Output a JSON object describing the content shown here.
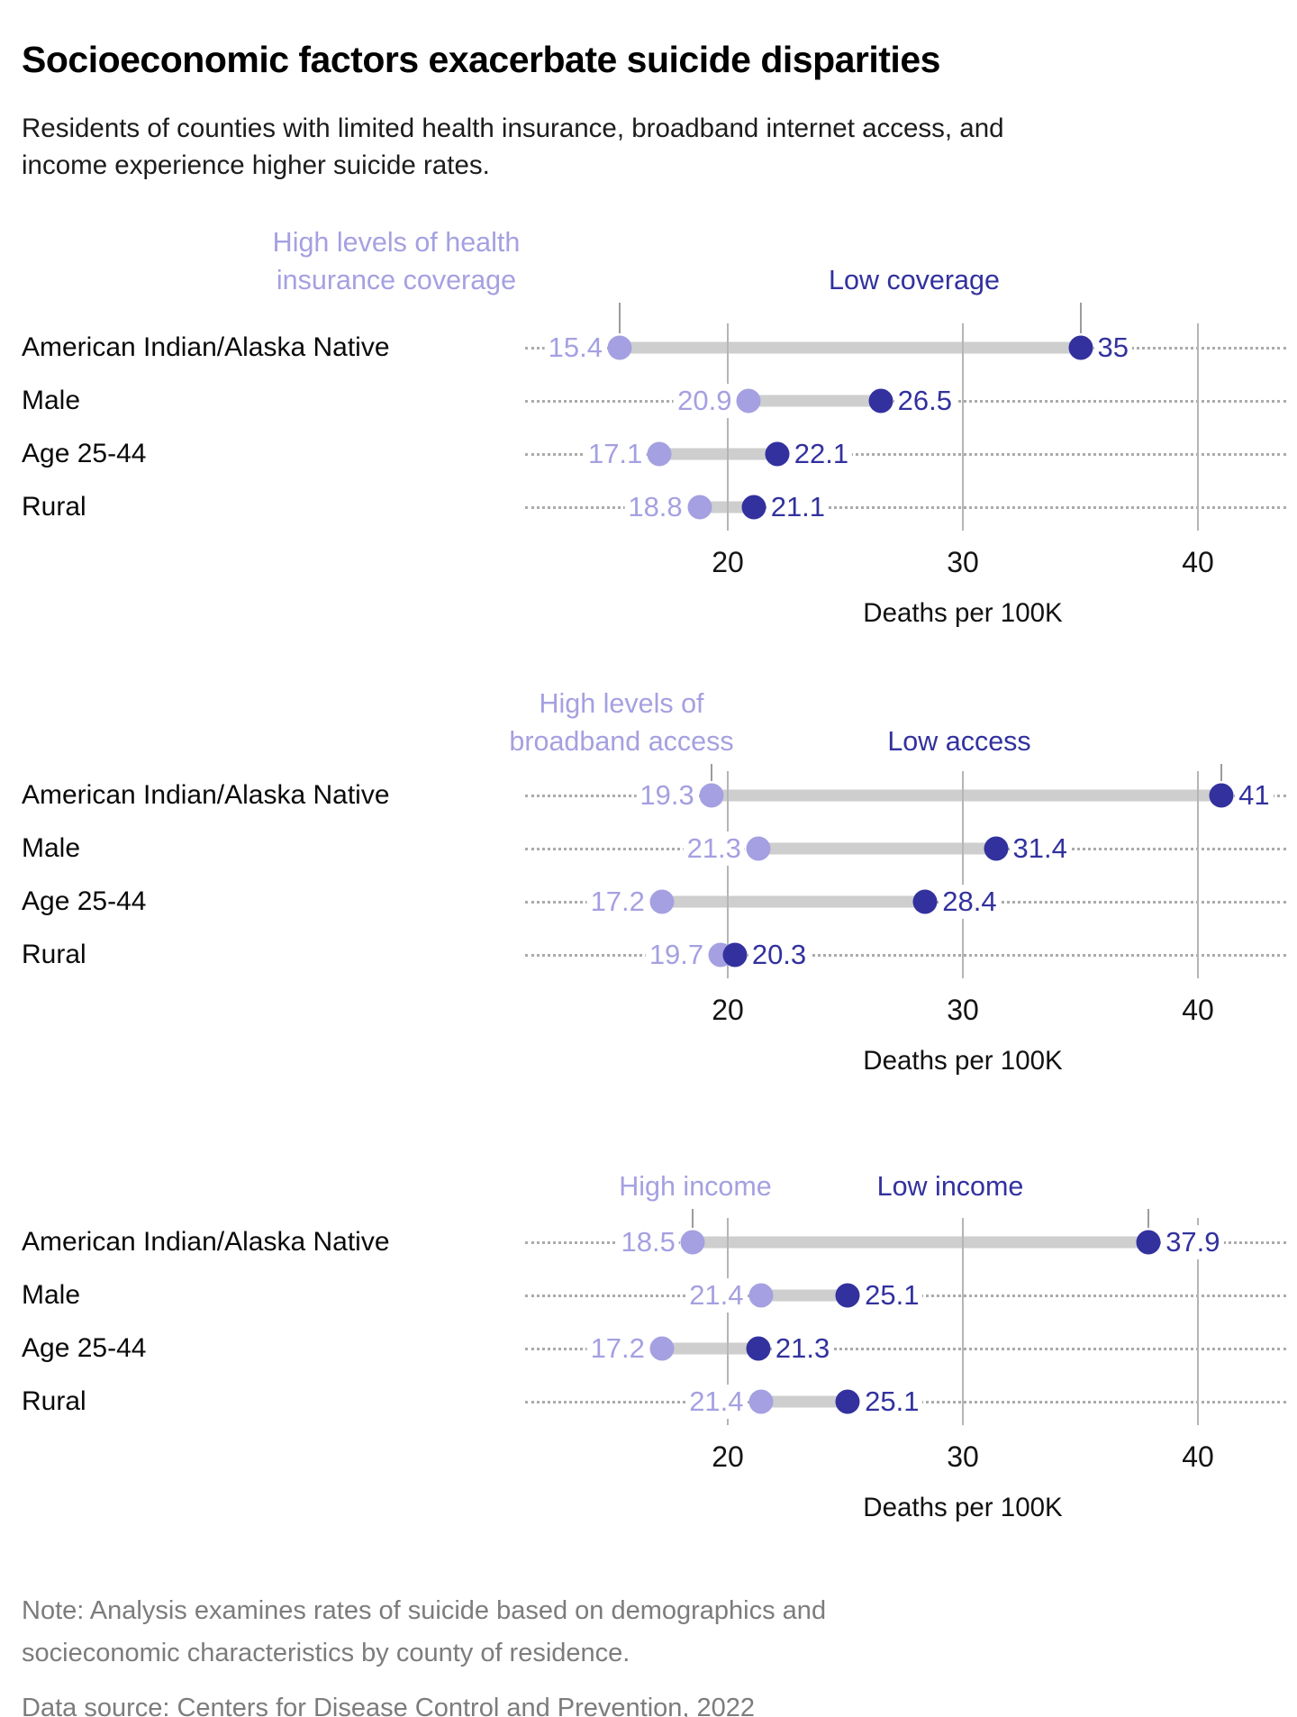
{
  "title": "Socioeconomic factors exacerbate suicide disparities",
  "subtitle": "Residents of counties with limited health insurance, broadband internet access, and income experience higher suicide rates.",
  "note": "Note: Analysis examines rates of suicide based on demographics and socieconomic characteristics by county of residence.",
  "source": "Data source: Centers for Disease Control and Prevention, 2022",
  "colors": {
    "high": "#a5a0e1",
    "low": "#32319e",
    "bar": "#cecece",
    "grid": "#b5b5b5"
  },
  "chart_data": [
    {
      "type": "dumbbell",
      "high_label_lines": [
        "High levels of health",
        "insurance coverage"
      ],
      "low_label": "Low coverage",
      "categories": [
        "American Indian/Alaska Native",
        "Male",
        "Age 25-44",
        "Rural"
      ],
      "series": [
        {
          "name": "high",
          "values": [
            15.4,
            20.9,
            17.1,
            18.8
          ],
          "labels": [
            "15.4",
            "20.9",
            "17.1",
            "18.8"
          ]
        },
        {
          "name": "low",
          "values": [
            35,
            26.5,
            22.1,
            21.1
          ],
          "labels": [
            "35",
            "26.5",
            "22.1",
            "21.1"
          ]
        }
      ],
      "ticks": [
        20,
        30,
        40
      ],
      "xlabel": "Deaths per 100K",
      "xlim": [
        11.4,
        43.8
      ]
    },
    {
      "type": "dumbbell",
      "high_label_lines": [
        "High levels of",
        "broadband access"
      ],
      "low_label": "Low access",
      "categories": [
        "American Indian/Alaska Native",
        "Male",
        "Age 25-44",
        "Rural"
      ],
      "series": [
        {
          "name": "high",
          "values": [
            19.3,
            21.3,
            17.2,
            19.7
          ],
          "labels": [
            "19.3",
            "21.3",
            "17.2",
            "19.7"
          ]
        },
        {
          "name": "low",
          "values": [
            41,
            31.4,
            28.4,
            20.3
          ],
          "labels": [
            "41",
            "31.4",
            "28.4",
            "20.3"
          ]
        }
      ],
      "ticks": [
        20,
        30,
        40
      ],
      "xlabel": "Deaths per 100K",
      "xlim": [
        11.4,
        43.8
      ]
    },
    {
      "type": "dumbbell",
      "high_label_lines": [
        "High income"
      ],
      "low_label": "Low income",
      "categories": [
        "American Indian/Alaska Native",
        "Male",
        "Age 25-44",
        "Rural"
      ],
      "series": [
        {
          "name": "high",
          "values": [
            18.5,
            21.4,
            17.2,
            21.4
          ],
          "labels": [
            "18.5",
            "21.4",
            "17.2",
            "21.4"
          ]
        },
        {
          "name": "low",
          "values": [
            37.9,
            25.1,
            21.3,
            25.1
          ],
          "labels": [
            "37.9",
            "25.1",
            "21.3",
            "25.1"
          ]
        }
      ],
      "ticks": [
        20,
        30,
        40
      ],
      "xlabel": "Deaths per 100K",
      "xlim": [
        11.4,
        43.8
      ]
    }
  ]
}
